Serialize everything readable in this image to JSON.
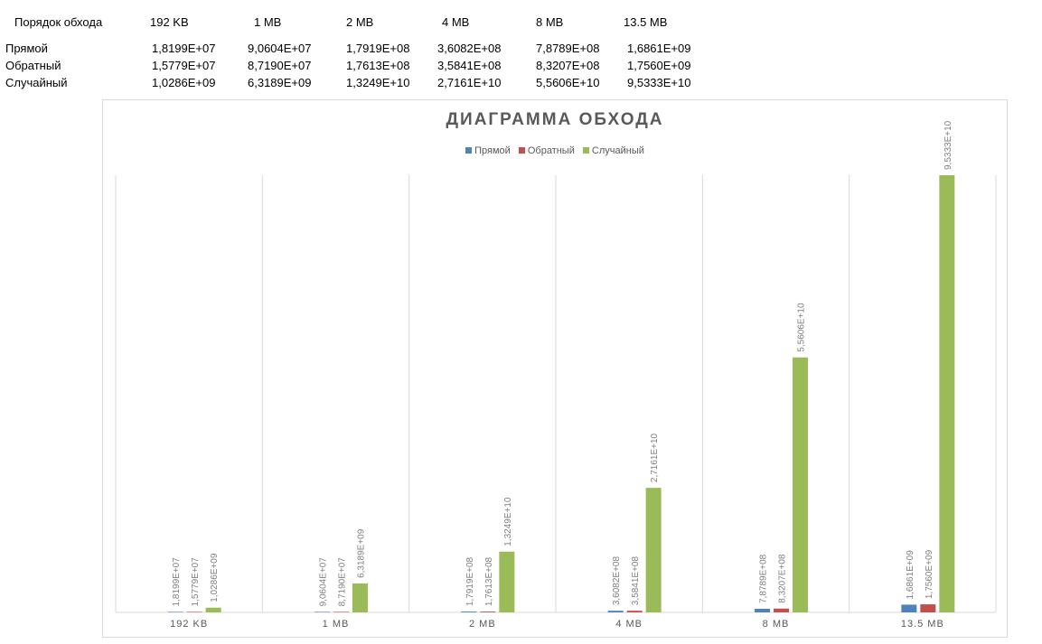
{
  "table": {
    "header_label": "Порядок обхода",
    "columns": [
      "192 KB",
      "1 MB",
      "2 MB",
      "4 MB",
      "8 MB",
      "13.5 MB"
    ],
    "rows": [
      {
        "label": "Прямой",
        "values": [
          "1,8199E+07",
          "9,0604E+07",
          "1,7919E+08",
          "3,6082E+08",
          "7,8789E+08",
          "1,6861E+09"
        ]
      },
      {
        "label": "Обратный",
        "values": [
          "1,5779E+07",
          "8,7190E+07",
          "1,7613E+08",
          "3,5841E+08",
          "8,3207E+08",
          "1,7560E+09"
        ]
      },
      {
        "label": "Случайный",
        "values": [
          "1,0286E+09",
          "6,3189E+09",
          "1,3249E+10",
          "2,7161E+10",
          "5,5606E+10",
          "9,5333E+10"
        ]
      }
    ]
  },
  "chart_data": {
    "type": "bar",
    "title": "ДИАГРАММА ОБХОДА",
    "categories": [
      "192 KB",
      "1 MB",
      "2 MB",
      "4 MB",
      "8 MB",
      "13.5 MB"
    ],
    "series": [
      {
        "name": "Прямой",
        "color": "#4f81bd",
        "values": [
          18199000,
          90604000,
          179190000,
          360820000,
          787890000,
          1686100000
        ],
        "labels": [
          "1,8199E+07",
          "9,0604E+07",
          "1,7919E+08",
          "3,6082E+08",
          "7,8789E+08",
          "1,6861E+09"
        ]
      },
      {
        "name": "Обратный",
        "color": "#c0504d",
        "values": [
          15779000,
          87190000,
          176130000,
          358410000,
          832070000,
          1756000000
        ],
        "labels": [
          "1,5779E+07",
          "8,7190E+07",
          "1,7613E+08",
          "3,5841E+08",
          "8,3207E+08",
          "1,7560E+09"
        ]
      },
      {
        "name": "Случайный",
        "color": "#9bbb59",
        "values": [
          1028600000,
          6318900000,
          13249000000,
          27161000000,
          55606000000,
          95333000000
        ],
        "labels": [
          "1,0286E+09",
          "6,3189E+09",
          "1,3249E+10",
          "2,7161E+10",
          "5,5606E+10",
          "9,5333E+10"
        ]
      }
    ],
    "ylim": [
      0,
      95333000000
    ],
    "grid": "vertical-category-separators",
    "legend_position": "top"
  }
}
